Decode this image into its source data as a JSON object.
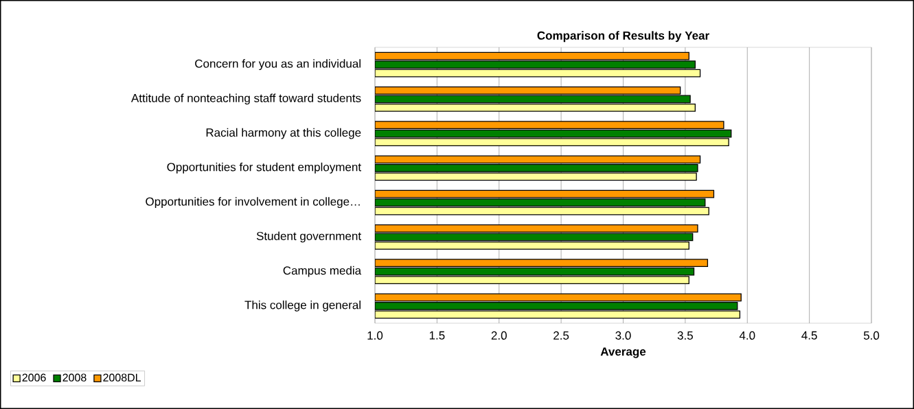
{
  "chart_data": {
    "type": "bar",
    "orientation": "horizontal",
    "title": "Comparison of Results by Year",
    "xlabel": "Average",
    "categories": [
      "Concern for you as an individual",
      "Attitude of nonteaching staff toward students",
      "Racial harmony at this college",
      "Opportunities for student employment",
      "Opportunities for involvement in college…",
      "Student government",
      "Campus media",
      "This college in general"
    ],
    "series": [
      {
        "name": "2006",
        "color": "#ffff99",
        "values": [
          3.62,
          3.58,
          3.85,
          3.59,
          3.69,
          3.53,
          3.53,
          3.94
        ]
      },
      {
        "name": "2008",
        "color": "#008000",
        "values": [
          3.58,
          3.54,
          3.87,
          3.6,
          3.66,
          3.56,
          3.57,
          3.92
        ]
      },
      {
        "name": "2008DL",
        "color": "#ff9900",
        "values": [
          3.53,
          3.46,
          3.81,
          3.62,
          3.73,
          3.6,
          3.68,
          3.95
        ]
      }
    ],
    "xlim": [
      1,
      5
    ],
    "xticks": [
      {
        "value": 1,
        "label": "1.0"
      },
      {
        "value": 1.5,
        "label": "1.5"
      },
      {
        "value": 2,
        "label": "2.0"
      },
      {
        "value": 2.5,
        "label": "2.5"
      },
      {
        "value": 3,
        "label": "3.0"
      },
      {
        "value": 3.5,
        "label": "3.5"
      },
      {
        "value": 4,
        "label": "4.0"
      },
      {
        "value": 4.5,
        "label": "4.5"
      },
      {
        "value": 5,
        "label": "5.0"
      }
    ],
    "grid": "x",
    "legend": "bottom left"
  }
}
